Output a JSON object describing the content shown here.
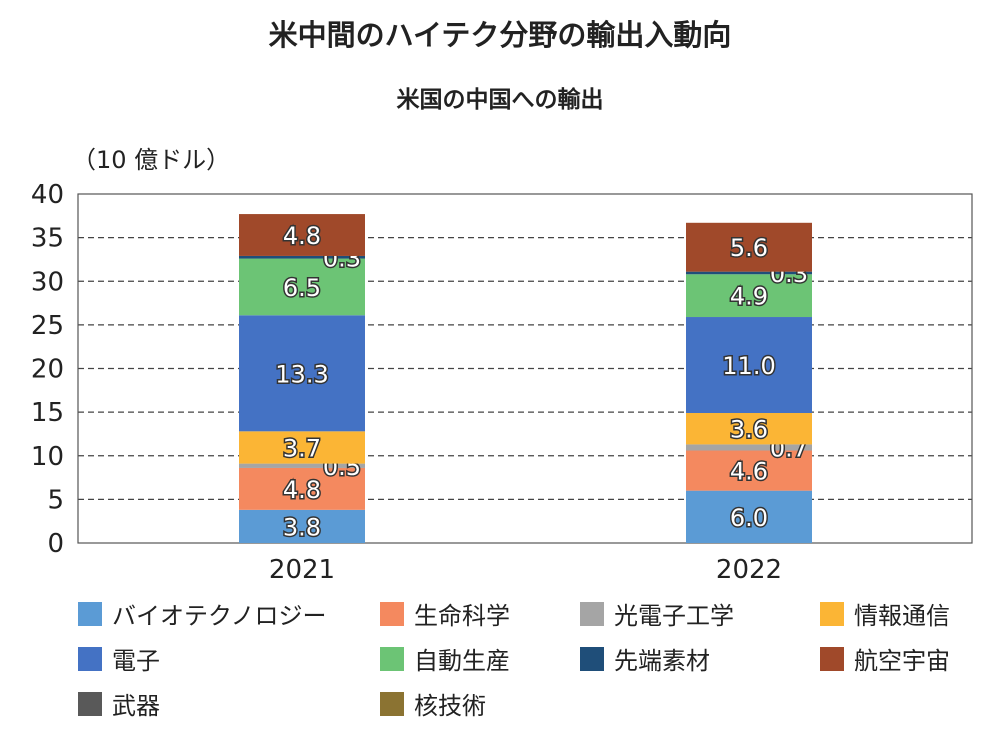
{
  "title": "米中間のハイテク分野の輸出入動向",
  "subtitle": "米国の中国への輸出",
  "chart_data": {
    "type": "bar",
    "stacked": true,
    "title": "米中間のハイテク分野の輸出入動向",
    "subtitle": "米国の中国への輸出",
    "unit_label": "（10 億ドル）",
    "categories": [
      "2021",
      "2022"
    ],
    "ylim": [
      0,
      40
    ],
    "yticks": [
      0,
      5,
      10,
      15,
      20,
      25,
      30,
      35,
      40
    ],
    "ytick_labels": [
      "0",
      "5",
      "10",
      "15",
      "20",
      "25",
      "30",
      "35",
      "40"
    ],
    "grid": "dashed horizontal",
    "legend_position": "bottom",
    "series": [
      {
        "name": "バイオテクノロジー",
        "color": "#5b9bd5",
        "values": [
          3.8,
          6.0
        ],
        "labels": [
          "3.8",
          "6.0"
        ]
      },
      {
        "name": "生命科学",
        "color": "#f4895f",
        "values": [
          4.8,
          4.6
        ],
        "labels": [
          "4.8",
          "4.6"
        ]
      },
      {
        "name": "光電子工学",
        "color": "#a5a5a5",
        "values": [
          0.5,
          0.7
        ],
        "labels": [
          "0.5",
          "0.7"
        ]
      },
      {
        "name": "情報通信",
        "color": "#fbb535",
        "values": [
          3.7,
          3.6
        ],
        "labels": [
          "3.7",
          "3.6"
        ]
      },
      {
        "name": "電子",
        "color": "#4472c4",
        "values": [
          13.3,
          11.0
        ],
        "labels": [
          "13.3",
          "11.0"
        ]
      },
      {
        "name": "自動生産",
        "color": "#6cc475",
        "values": [
          6.5,
          4.9
        ],
        "labels": [
          "6.5",
          "4.9"
        ]
      },
      {
        "name": "先端素材",
        "color": "#1f4e79",
        "values": [
          0.3,
          0.3
        ],
        "labels": [
          "0.3",
          "0.3"
        ]
      },
      {
        "name": "航空宇宙",
        "color": "#a0492a",
        "values": [
          4.8,
          5.6
        ],
        "labels": [
          "4.8",
          "5.6"
        ]
      },
      {
        "name": "武器",
        "color": "#595959",
        "values": [
          0,
          0
        ],
        "labels": [
          "",
          ""
        ]
      },
      {
        "name": "核技術",
        "color": "#8b7332",
        "values": [
          0,
          0
        ],
        "labels": [
          "",
          ""
        ]
      }
    ]
  }
}
